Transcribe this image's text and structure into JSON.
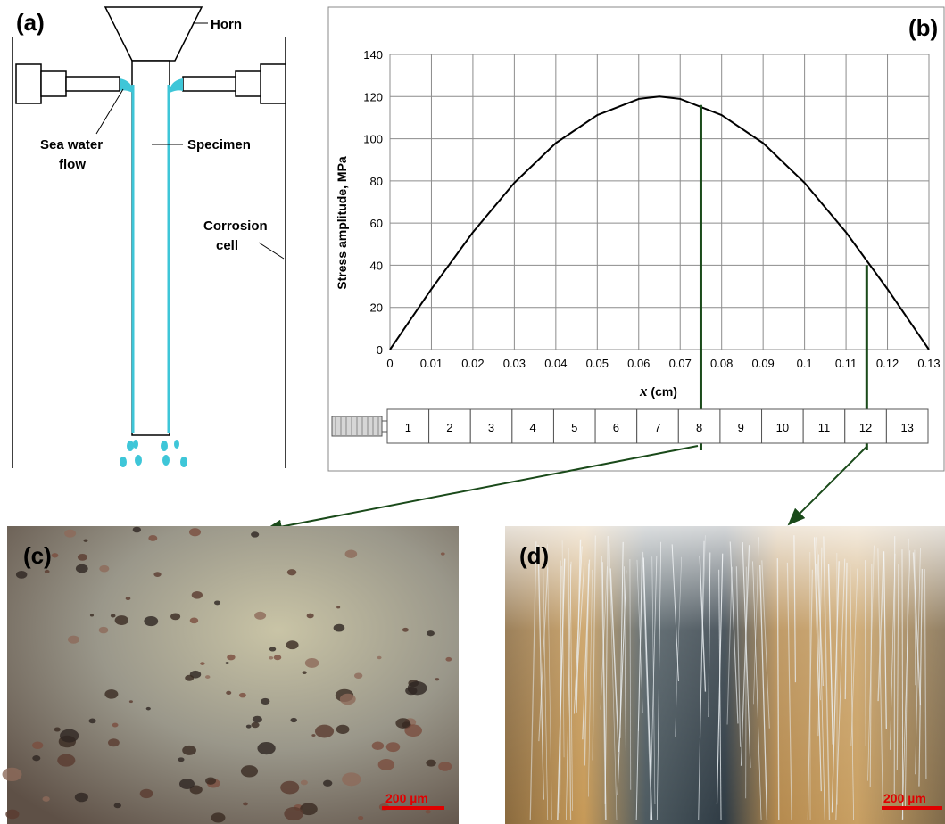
{
  "panels": {
    "a": {
      "label": "(a)",
      "horn": "Horn",
      "sea_water_line1": "Sea water",
      "sea_water_line2": "flow",
      "specimen": "Specimen",
      "corrosion_line1": "Corrosion",
      "corrosion_line2": "cell"
    },
    "b": {
      "label": "(b)"
    },
    "c": {
      "label": "(c)",
      "scale_bar": "200 µm"
    },
    "d": {
      "label": "(d)",
      "scale_bar": "200 µm"
    }
  },
  "chart_data": {
    "type": "line",
    "xlabel_var": "x",
    "xlabel_unit": " (cm)",
    "ylabel": "Stress amplitude,  MPa",
    "xlim": [
      0,
      0.13
    ],
    "ylim": [
      0,
      140
    ],
    "x_ticks": [
      "0",
      "0.01",
      "0.02",
      "0.03",
      "0.04",
      "0.05",
      "0.06",
      "0.07",
      "0.08",
      "0.09",
      "0.1",
      "0.11",
      "0.12",
      "0.13"
    ],
    "y_ticks": [
      "0",
      "20",
      "40",
      "60",
      "80",
      "100",
      "120",
      "140"
    ],
    "grid": true,
    "series": [
      {
        "x": [
          0,
          0.01,
          0.02,
          0.03,
          0.04,
          0.05,
          0.06,
          0.065,
          0.07,
          0.08,
          0.09,
          0.1,
          0.11,
          0.12,
          0.13
        ],
        "y": [
          0,
          28.7,
          55.6,
          79.1,
          97.9,
          111.2,
          118.9,
          120,
          118.9,
          111.2,
          97.9,
          79.1,
          55.6,
          28.7,
          0
        ]
      }
    ],
    "markers": [
      {
        "x": 0.075,
        "y": 116,
        "segment": "8"
      },
      {
        "x": 0.115,
        "y": 40,
        "segment": "12"
      }
    ],
    "specimen_segments": [
      "1",
      "2",
      "3",
      "4",
      "5",
      "6",
      "7",
      "8",
      "9",
      "10",
      "11",
      "12",
      "13"
    ]
  },
  "colors": {
    "water": "#3ec6d8",
    "marker": "#1a4a1a",
    "scale": "#e00000"
  }
}
